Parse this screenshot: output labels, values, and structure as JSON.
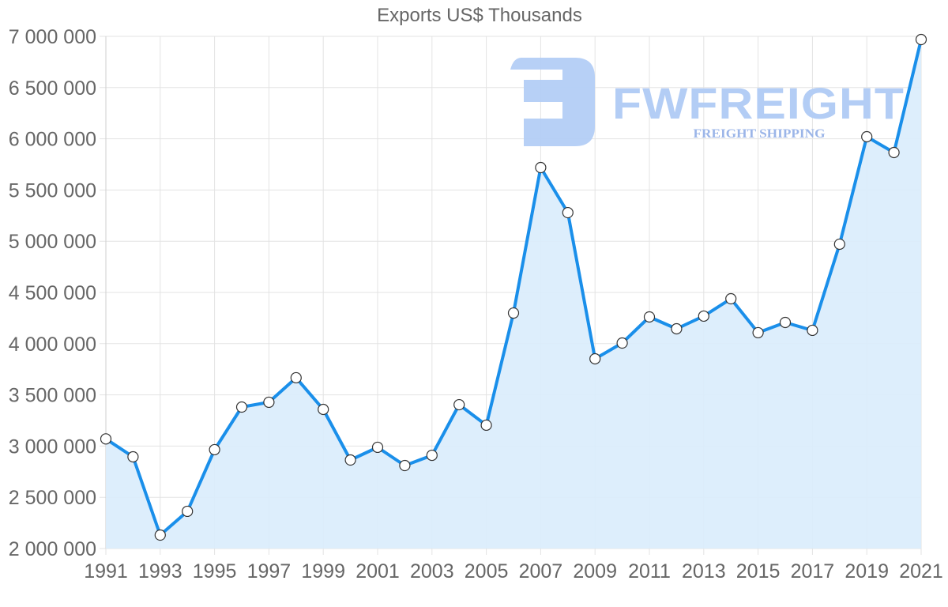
{
  "chart_data": {
    "type": "area",
    "title": "Exports US$ Thousands",
    "xlabel": "",
    "ylabel": "",
    "x": [
      1991,
      1992,
      1993,
      1994,
      1995,
      1996,
      1997,
      1998,
      1999,
      2000,
      2001,
      2002,
      2003,
      2004,
      2005,
      2006,
      2007,
      2008,
      2009,
      2010,
      2011,
      2012,
      2013,
      2014,
      2015,
      2016,
      2017,
      2018,
      2019,
      2020,
      2021
    ],
    "series": [
      {
        "name": "Exports US$ Thousands",
        "values": [
          3070000,
          2895000,
          2131000,
          2363000,
          2965000,
          3381000,
          3428000,
          3667000,
          3358000,
          2864000,
          2988000,
          2810000,
          2910000,
          3404000,
          3204000,
          4299000,
          5719000,
          5279000,
          3852000,
          4006000,
          4261000,
          4145000,
          4269000,
          4438000,
          4107000,
          4207000,
          4130000,
          4971000,
          6020000,
          5866000,
          6969000
        ]
      }
    ],
    "ylim": [
      2000000,
      7000000
    ],
    "y_ticks": [
      "2 000 000",
      "2 500 000",
      "3 000 000",
      "3 500 000",
      "4 000 000",
      "4 500 000",
      "5 000 000",
      "5 500 000",
      "6 000 000",
      "6 500 000",
      "7 000 000"
    ],
    "x_tick_labels": [
      "1991",
      "1993",
      "1995",
      "1997",
      "1999",
      "2001",
      "2003",
      "2005",
      "2007",
      "2009",
      "2011",
      "2013",
      "2015",
      "2017",
      "2019",
      "2021"
    ],
    "grid": true,
    "legend": "none"
  },
  "colors": {
    "line": "#1a8fea",
    "fill": "#d9ecfc",
    "point_fill": "#ffffff",
    "point_stroke": "#333333",
    "grid": "#e3e3e3",
    "axis_text": "#666666",
    "watermark": "#b3cdf5",
    "watermark_sub": "#9bb5e8"
  },
  "watermark": {
    "brand": "FWFREIGHT",
    "tagline": "FREIGHT SHIPPING"
  }
}
